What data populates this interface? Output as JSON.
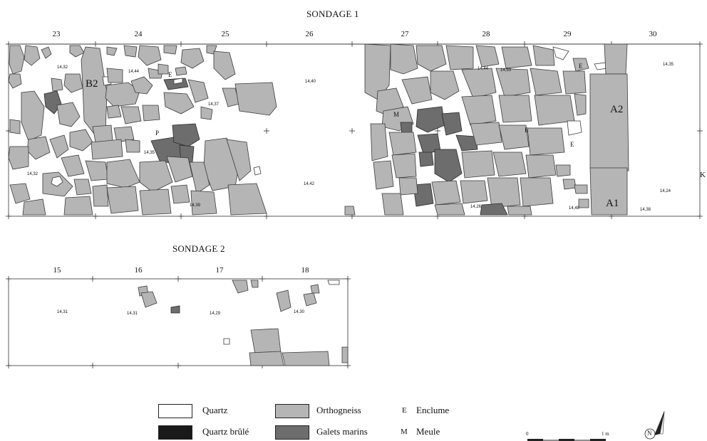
{
  "sondage1": {
    "title": "SONDAGE 1",
    "columns": [
      "23",
      "24",
      "25",
      "26",
      "27",
      "28",
      "29",
      "30"
    ],
    "row_label": "K",
    "elevations": [
      "14,32",
      "14,44",
      "14,40",
      "14,37",
      "14,35",
      "14,32",
      "14,42",
      "14,39",
      "14,44",
      "14,53",
      "14,35",
      "14,26",
      "14,48",
      "14,38",
      "14,24"
    ],
    "symbols": [
      "B2",
      "A2",
      "A1",
      "M",
      "E",
      "E",
      "P",
      "E",
      "E"
    ]
  },
  "sondage2": {
    "title": "SONDAGE 2",
    "columns": [
      "15",
      "16",
      "17",
      "18"
    ],
    "elevations": [
      "14,31",
      "14,31",
      "14,29",
      "14,30"
    ]
  },
  "legend": {
    "items": [
      {
        "label": "Quartz",
        "color": "#ffffff"
      },
      {
        "label": "Quartz brûlé",
        "color": "#1a1a1a"
      },
      {
        "label": "Orthogneiss",
        "color": "#b5b5b5"
      },
      {
        "label": "Galets marins",
        "color": "#6d6d6d"
      }
    ],
    "codes": [
      {
        "code": "E",
        "label": "Enclume"
      },
      {
        "code": "M",
        "label": "Meule"
      }
    ]
  },
  "scale": {
    "start": "0",
    "end": "1 m"
  },
  "north": {
    "letter": "N"
  }
}
